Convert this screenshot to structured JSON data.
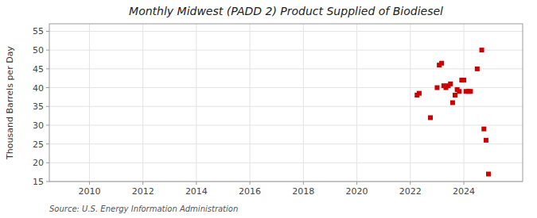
{
  "chart_data": {
    "type": "scatter",
    "title": "Monthly Midwest (PADD 2) Product Supplied of Biodiesel",
    "ylabel": "Thousand Barrels per Day",
    "annotations": [
      "Source: U.S. Energy Information Administration"
    ],
    "color": "#cc0000",
    "marker": "square",
    "grid": true,
    "xlim": [
      2008.5,
      2026.2
    ],
    "ylim": [
      15,
      57
    ],
    "xticks": [
      2010,
      2012,
      2014,
      2016,
      2018,
      2020,
      2022,
      2024
    ],
    "yticks": [
      15,
      20,
      25,
      30,
      35,
      40,
      45,
      50,
      55
    ],
    "x": [
      2022.25,
      2022.33,
      2022.75,
      2023.0,
      2023.08,
      2023.17,
      2023.25,
      2023.33,
      2023.42,
      2023.5,
      2023.58,
      2023.67,
      2023.75,
      2023.83,
      2023.92,
      2024.0,
      2024.08,
      2024.17,
      2024.25,
      2024.5,
      2024.67,
      2024.75,
      2024.83,
      2024.92
    ],
    "values": [
      38.0,
      38.5,
      32.0,
      40.0,
      46.0,
      46.5,
      40.5,
      40.0,
      40.5,
      41.0,
      36.0,
      38.0,
      39.5,
      39.0,
      42.0,
      42.0,
      39.0,
      39.0,
      39.0,
      45.0,
      50.0,
      29.0,
      26.0,
      17.0
    ]
  }
}
